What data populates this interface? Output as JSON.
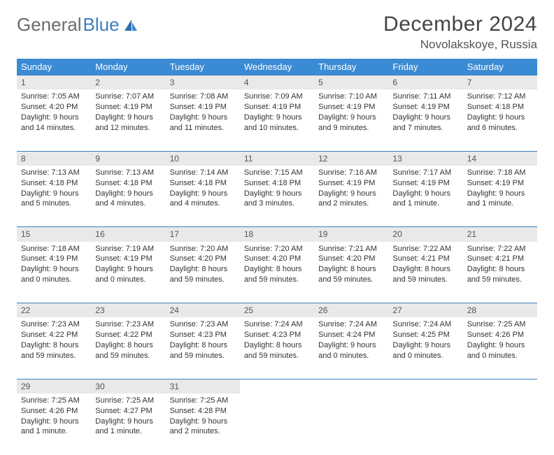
{
  "brand": {
    "word1": "General",
    "word2": "Blue"
  },
  "title": "December 2024",
  "location": "Novolakskoye, Russia",
  "colors": {
    "header_bg": "#3b8bd4",
    "header_text": "#ffffff",
    "daynum_bg": "#e9e9e9",
    "rule": "#3b7fbf",
    "body_text": "#333333",
    "title_text": "#444444",
    "logo_gray": "#6b6b6b",
    "logo_blue": "#3b7fbf"
  },
  "day_headers": [
    "Sunday",
    "Monday",
    "Tuesday",
    "Wednesday",
    "Thursday",
    "Friday",
    "Saturday"
  ],
  "weeks": [
    [
      {
        "n": "1",
        "sr": "Sunrise: 7:05 AM",
        "ss": "Sunset: 4:20 PM",
        "dl": "Daylight: 9 hours and 14 minutes."
      },
      {
        "n": "2",
        "sr": "Sunrise: 7:07 AM",
        "ss": "Sunset: 4:19 PM",
        "dl": "Daylight: 9 hours and 12 minutes."
      },
      {
        "n": "3",
        "sr": "Sunrise: 7:08 AM",
        "ss": "Sunset: 4:19 PM",
        "dl": "Daylight: 9 hours and 11 minutes."
      },
      {
        "n": "4",
        "sr": "Sunrise: 7:09 AM",
        "ss": "Sunset: 4:19 PM",
        "dl": "Daylight: 9 hours and 10 minutes."
      },
      {
        "n": "5",
        "sr": "Sunrise: 7:10 AM",
        "ss": "Sunset: 4:19 PM",
        "dl": "Daylight: 9 hours and 9 minutes."
      },
      {
        "n": "6",
        "sr": "Sunrise: 7:11 AM",
        "ss": "Sunset: 4:19 PM",
        "dl": "Daylight: 9 hours and 7 minutes."
      },
      {
        "n": "7",
        "sr": "Sunrise: 7:12 AM",
        "ss": "Sunset: 4:18 PM",
        "dl": "Daylight: 9 hours and 6 minutes."
      }
    ],
    [
      {
        "n": "8",
        "sr": "Sunrise: 7:13 AM",
        "ss": "Sunset: 4:18 PM",
        "dl": "Daylight: 9 hours and 5 minutes."
      },
      {
        "n": "9",
        "sr": "Sunrise: 7:13 AM",
        "ss": "Sunset: 4:18 PM",
        "dl": "Daylight: 9 hours and 4 minutes."
      },
      {
        "n": "10",
        "sr": "Sunrise: 7:14 AM",
        "ss": "Sunset: 4:18 PM",
        "dl": "Daylight: 9 hours and 4 minutes."
      },
      {
        "n": "11",
        "sr": "Sunrise: 7:15 AM",
        "ss": "Sunset: 4:18 PM",
        "dl": "Daylight: 9 hours and 3 minutes."
      },
      {
        "n": "12",
        "sr": "Sunrise: 7:16 AM",
        "ss": "Sunset: 4:19 PM",
        "dl": "Daylight: 9 hours and 2 minutes."
      },
      {
        "n": "13",
        "sr": "Sunrise: 7:17 AM",
        "ss": "Sunset: 4:19 PM",
        "dl": "Daylight: 9 hours and 1 minute."
      },
      {
        "n": "14",
        "sr": "Sunrise: 7:18 AM",
        "ss": "Sunset: 4:19 PM",
        "dl": "Daylight: 9 hours and 1 minute."
      }
    ],
    [
      {
        "n": "15",
        "sr": "Sunrise: 7:18 AM",
        "ss": "Sunset: 4:19 PM",
        "dl": "Daylight: 9 hours and 0 minutes."
      },
      {
        "n": "16",
        "sr": "Sunrise: 7:19 AM",
        "ss": "Sunset: 4:19 PM",
        "dl": "Daylight: 9 hours and 0 minutes."
      },
      {
        "n": "17",
        "sr": "Sunrise: 7:20 AM",
        "ss": "Sunset: 4:20 PM",
        "dl": "Daylight: 8 hours and 59 minutes."
      },
      {
        "n": "18",
        "sr": "Sunrise: 7:20 AM",
        "ss": "Sunset: 4:20 PM",
        "dl": "Daylight: 8 hours and 59 minutes."
      },
      {
        "n": "19",
        "sr": "Sunrise: 7:21 AM",
        "ss": "Sunset: 4:20 PM",
        "dl": "Daylight: 8 hours and 59 minutes."
      },
      {
        "n": "20",
        "sr": "Sunrise: 7:22 AM",
        "ss": "Sunset: 4:21 PM",
        "dl": "Daylight: 8 hours and 59 minutes."
      },
      {
        "n": "21",
        "sr": "Sunrise: 7:22 AM",
        "ss": "Sunset: 4:21 PM",
        "dl": "Daylight: 8 hours and 59 minutes."
      }
    ],
    [
      {
        "n": "22",
        "sr": "Sunrise: 7:23 AM",
        "ss": "Sunset: 4:22 PM",
        "dl": "Daylight: 8 hours and 59 minutes."
      },
      {
        "n": "23",
        "sr": "Sunrise: 7:23 AM",
        "ss": "Sunset: 4:22 PM",
        "dl": "Daylight: 8 hours and 59 minutes."
      },
      {
        "n": "24",
        "sr": "Sunrise: 7:23 AM",
        "ss": "Sunset: 4:23 PM",
        "dl": "Daylight: 8 hours and 59 minutes."
      },
      {
        "n": "25",
        "sr": "Sunrise: 7:24 AM",
        "ss": "Sunset: 4:23 PM",
        "dl": "Daylight: 8 hours and 59 minutes."
      },
      {
        "n": "26",
        "sr": "Sunrise: 7:24 AM",
        "ss": "Sunset: 4:24 PM",
        "dl": "Daylight: 9 hours and 0 minutes."
      },
      {
        "n": "27",
        "sr": "Sunrise: 7:24 AM",
        "ss": "Sunset: 4:25 PM",
        "dl": "Daylight: 9 hours and 0 minutes."
      },
      {
        "n": "28",
        "sr": "Sunrise: 7:25 AM",
        "ss": "Sunset: 4:26 PM",
        "dl": "Daylight: 9 hours and 0 minutes."
      }
    ],
    [
      {
        "n": "29",
        "sr": "Sunrise: 7:25 AM",
        "ss": "Sunset: 4:26 PM",
        "dl": "Daylight: 9 hours and 1 minute."
      },
      {
        "n": "30",
        "sr": "Sunrise: 7:25 AM",
        "ss": "Sunset: 4:27 PM",
        "dl": "Daylight: 9 hours and 1 minute."
      },
      {
        "n": "31",
        "sr": "Sunrise: 7:25 AM",
        "ss": "Sunset: 4:28 PM",
        "dl": "Daylight: 9 hours and 2 minutes."
      },
      null,
      null,
      null,
      null
    ]
  ]
}
